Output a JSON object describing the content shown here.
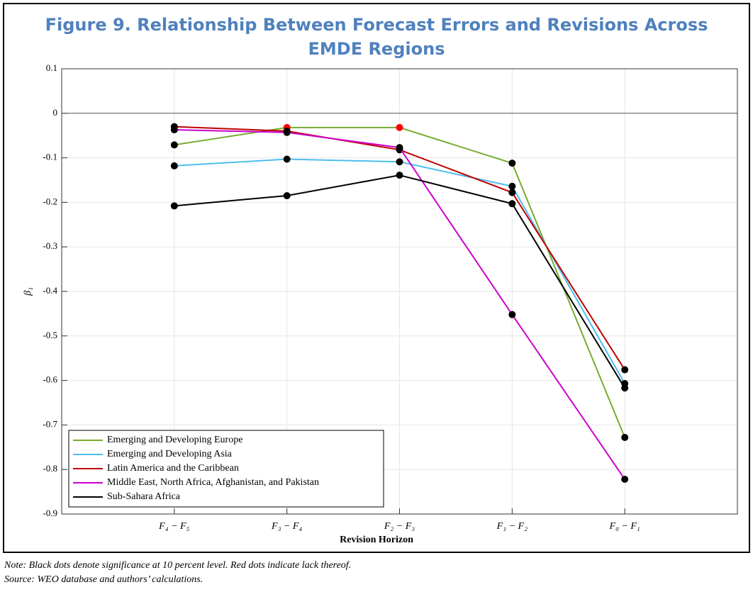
{
  "chart_data": {
    "type": "line",
    "title": "Figure 9. Relationship Between Forecast Errors and Revisions Across EMDE Regions",
    "x_label": "Revision Horizon",
    "y_label": "β₁",
    "categories": [
      "F₄ − F₅",
      "F₃ − F₄",
      "F₂ − F₃",
      "F₁ − F₂",
      "F₀ − F₁"
    ],
    "series": [
      {
        "name": "Emerging and Developing Europe",
        "color": "#77ac30",
        "values": [
          -0.071,
          -0.032,
          -0.032,
          -0.112,
          -0.728
        ],
        "marker_colors": [
          "#000000",
          "#ff0000",
          "#ff0000",
          "#000000",
          "#000000"
        ]
      },
      {
        "name": "Emerging and Developing Asia",
        "color": "#4dbeee",
        "values": [
          -0.118,
          -0.103,
          -0.109,
          -0.164,
          -0.607
        ],
        "marker_colors": [
          "#000000",
          "#000000",
          "#000000",
          "#000000",
          "#000000"
        ]
      },
      {
        "name": "Latin America and the Caribbean",
        "color": "#c00000",
        "values": [
          -0.03,
          -0.04,
          -0.082,
          -0.178,
          -0.576
        ],
        "marker_colors": [
          "#000000",
          "#000000",
          "#000000",
          "#000000",
          "#000000"
        ]
      },
      {
        "name": "Middle East, North Africa, Afghanistan, and Pakistan",
        "color": "#cc00cc",
        "values": [
          -0.037,
          -0.043,
          -0.077,
          -0.452,
          -0.822
        ],
        "marker_colors": [
          "#000000",
          "#000000",
          "#000000",
          "#000000",
          "#000000"
        ]
      },
      {
        "name": "Sub-Sahara Africa",
        "color": "#000000",
        "values": [
          -0.208,
          -0.185,
          -0.139,
          -0.203,
          -0.617
        ],
        "marker_colors": [
          "#000000",
          "#000000",
          "#000000",
          "#000000",
          "#000000"
        ]
      }
    ],
    "ylim": [
      -0.9,
      0.1
    ],
    "yticks": [
      0.1,
      0,
      -0.1,
      -0.2,
      -0.3,
      -0.4,
      -0.5,
      -0.6,
      -0.7,
      -0.8,
      -0.9
    ],
    "grid": true,
    "legend": "lower left"
  },
  "notes": [
    "Note: Black dots denote significance at 10 percent level. Red dots indicate lack thereof.",
    "Source: WEO database and authors’ calculations."
  ]
}
